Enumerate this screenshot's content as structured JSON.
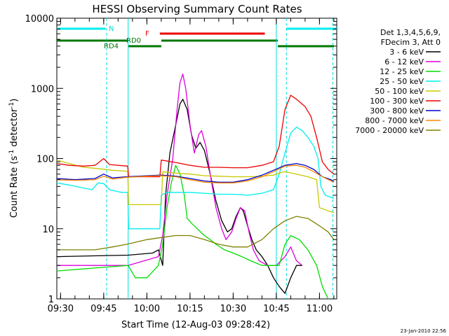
{
  "chart_data": {
    "type": "line",
    "title": "HESSI Observing Summary Count Rates",
    "xlabel": "Start Time (12-Aug-03 09:28:42)",
    "ylabel_main": "Count Rate (s",
    "ylabel_sup1": "-1",
    "ylabel_mid": " detector",
    "ylabel_sup2": "-1",
    "ylabel_end": ")",
    "yscale": "log",
    "xlim": [
      "09:28:42",
      "11:06:00"
    ],
    "ylim": [
      1,
      10000
    ],
    "x_ticks": [
      "09:30",
      "09:45",
      "10:00",
      "10:15",
      "10:30",
      "10:45",
      "11:00"
    ],
    "y_ticks": [
      "1",
      "10",
      "100",
      "1000",
      "10000"
    ],
    "legend_header": [
      "Det 1,3,4,5,6,9,",
      "FDecim 3, Att 0"
    ],
    "legend_position": "right",
    "footer_timestamp": "23-Jan-2010 22:56",
    "flag_labels": {
      "night": "N",
      "flare": "F",
      "rd4": "RD4",
      "rd0": "RD0"
    },
    "flags": {
      "night": [
        [
          "09:28:42",
          "09:45:40"
        ],
        [
          "10:48:30",
          "11:06:00"
        ]
      ],
      "flare": [
        [
          "10:04:30",
          "10:41:00"
        ]
      ],
      "rd4": [
        [
          "09:28:42",
          "09:53:30"
        ],
        [
          "10:05:00",
          "10:45:30"
        ]
      ],
      "rd4_low": [
        [
          "09:53:30",
          "10:05:00"
        ],
        [
          "10:45:30",
          "11:05:00"
        ]
      ]
    },
    "vlines_dashed": [
      "09:46:00",
      "10:48:30",
      "11:04:40"
    ],
    "vlines_solid": [
      "09:53:30",
      "10:45:00"
    ],
    "series": [
      {
        "name": "3 - 6 keV",
        "color": "#000000",
        "points": [
          [
            "09:28:42",
            4
          ],
          [
            "09:53:30",
            4.2
          ],
          [
            "10:02:00",
            4.5
          ],
          [
            "10:04:00",
            5
          ],
          [
            "10:05:30",
            3
          ],
          [
            "10:06:30",
            30
          ],
          [
            "10:08:00",
            120
          ],
          [
            "10:10:00",
            300
          ],
          [
            "10:11:30",
            600
          ],
          [
            "10:12:30",
            700
          ],
          [
            "10:14:00",
            500
          ],
          [
            "10:15:30",
            220
          ],
          [
            "10:17:00",
            140
          ],
          [
            "10:18:30",
            170
          ],
          [
            "10:20:00",
            130
          ],
          [
            "10:22:00",
            60
          ],
          [
            "10:24:00",
            25
          ],
          [
            "10:26:00",
            13
          ],
          [
            "10:28:00",
            9
          ],
          [
            "10:29:30",
            10
          ],
          [
            "10:31:00",
            15
          ],
          [
            "10:32:30",
            20
          ],
          [
            "10:33:30",
            18
          ],
          [
            "10:35:00",
            11
          ],
          [
            "10:36:30",
            7
          ],
          [
            "10:38:00",
            5
          ],
          [
            "10:40:00",
            4
          ],
          [
            "10:42:00",
            3
          ],
          [
            "10:44:00",
            2
          ],
          [
            "10:46:00",
            1.5
          ],
          [
            "10:48:00",
            1.2
          ],
          [
            "10:50:00",
            2
          ],
          [
            "10:52:00",
            3
          ],
          [
            "10:54:00",
            3
          ]
        ]
      },
      {
        "name": "6 - 12 keV",
        "color": "#dd00dd",
        "points": [
          [
            "09:28:42",
            3
          ],
          [
            "09:53:30",
            3
          ],
          [
            "10:04:00",
            4
          ],
          [
            "10:05:30",
            8
          ],
          [
            "10:07:00",
            30
          ],
          [
            "10:09:00",
            100
          ],
          [
            "10:10:30",
            500
          ],
          [
            "10:11:30",
            1200
          ],
          [
            "10:12:30",
            1600
          ],
          [
            "10:13:30",
            1000
          ],
          [
            "10:15:00",
            300
          ],
          [
            "10:16:30",
            120
          ],
          [
            "10:18:00",
            220
          ],
          [
            "10:19:00",
            250
          ],
          [
            "10:20:30",
            150
          ],
          [
            "10:22:00",
            60
          ],
          [
            "10:24:00",
            20
          ],
          [
            "10:26:00",
            10
          ],
          [
            "10:27:30",
            7
          ],
          [
            "10:29:30",
            9
          ],
          [
            "10:31:00",
            14
          ],
          [
            "10:32:30",
            20
          ],
          [
            "10:34:00",
            18
          ],
          [
            "10:35:30",
            9
          ],
          [
            "10:37:00",
            5
          ],
          [
            "10:39:00",
            3.5
          ],
          [
            "10:42:00",
            3
          ],
          [
            "10:45:00",
            3
          ],
          [
            "10:48:00",
            4
          ],
          [
            "10:50:00",
            5.5
          ],
          [
            "10:52:00",
            3.5
          ],
          [
            "10:54:00",
            3
          ]
        ]
      },
      {
        "name": "12 - 25 keV",
        "color": "#00dd00",
        "points": [
          [
            "09:28:42",
            2.5
          ],
          [
            "09:53:30",
            3
          ],
          [
            "09:56:00",
            2
          ],
          [
            "10:00:00",
            2
          ],
          [
            "10:04:00",
            3
          ],
          [
            "10:05:30",
            6
          ],
          [
            "10:07:00",
            20
          ],
          [
            "10:08:30",
            45
          ],
          [
            "10:10:00",
            80
          ],
          [
            "10:11:30",
            60
          ],
          [
            "10:13:00",
            30
          ],
          [
            "10:14:00",
            14
          ],
          [
            "10:15:30",
            12
          ],
          [
            "10:17:30",
            10
          ],
          [
            "10:20:00",
            8
          ],
          [
            "10:22:00",
            7
          ],
          [
            "10:24:00",
            6
          ],
          [
            "10:27:00",
            5
          ],
          [
            "10:30:00",
            4.5
          ],
          [
            "10:33:00",
            4
          ],
          [
            "10:36:00",
            3.5
          ],
          [
            "10:40:00",
            3
          ],
          [
            "10:44:00",
            3
          ],
          [
            "10:46:00",
            3
          ],
          [
            "10:48:00",
            6
          ],
          [
            "10:50:00",
            8
          ],
          [
            "10:53:00",
            7
          ],
          [
            "10:56:00",
            5
          ],
          [
            "10:59:00",
            3
          ],
          [
            "11:01:00",
            1.5
          ],
          [
            "11:03:00",
            1
          ]
        ]
      },
      {
        "name": "25 - 50 keV",
        "color": "#00eeee",
        "points": [
          [
            "09:28:42",
            45
          ],
          [
            "09:33:00",
            42
          ],
          [
            "09:38:00",
            38
          ],
          [
            "09:41:00",
            36
          ],
          [
            "09:43:00",
            45
          ],
          [
            "09:45:00",
            44
          ],
          [
            "09:47:00",
            36
          ],
          [
            "09:51:00",
            33
          ],
          [
            "09:53:20",
            33
          ],
          [
            "09:53:40",
            10
          ],
          [
            "10:00:00",
            10
          ],
          [
            "10:04:30",
            10
          ],
          [
            "10:05:00",
            30
          ],
          [
            "10:07:00",
            33
          ],
          [
            "10:10:00",
            33
          ],
          [
            "10:15:00",
            33
          ],
          [
            "10:20:00",
            32
          ],
          [
            "10:25:00",
            31
          ],
          [
            "10:30:00",
            31
          ],
          [
            "10:35:00",
            30
          ],
          [
            "10:40:00",
            32
          ],
          [
            "10:44:00",
            36
          ],
          [
            "10:46:00",
            60
          ],
          [
            "10:48:00",
            120
          ],
          [
            "10:50:00",
            230
          ],
          [
            "10:52:00",
            280
          ],
          [
            "10:54:00",
            250
          ],
          [
            "10:56:00",
            200
          ],
          [
            "10:58:00",
            150
          ],
          [
            "10:59:30",
            100
          ],
          [
            "11:00:30",
            40
          ],
          [
            "11:02:00",
            30
          ],
          [
            "11:04:00",
            28
          ],
          [
            "11:05:00",
            27
          ]
        ]
      },
      {
        "name": "50 - 100 keV",
        "color": "#c8c800",
        "points": [
          [
            "09:28:42",
            95
          ],
          [
            "09:33:00",
            85
          ],
          [
            "09:38:00",
            75
          ],
          [
            "09:43:00",
            72
          ],
          [
            "09:48:00",
            68
          ],
          [
            "09:53:20",
            66
          ],
          [
            "09:53:40",
            22
          ],
          [
            "10:05:00",
            22
          ],
          [
            "10:05:30",
            65
          ],
          [
            "10:10:00",
            62
          ],
          [
            "10:15:00",
            60
          ],
          [
            "10:20:00",
            57
          ],
          [
            "10:25:00",
            56
          ],
          [
            "10:30:00",
            55
          ],
          [
            "10:35:00",
            55
          ],
          [
            "10:40:00",
            56
          ],
          [
            "10:44:00",
            58
          ],
          [
            "10:46:00",
            62
          ],
          [
            "10:48:00",
            65
          ],
          [
            "10:52:00",
            60
          ],
          [
            "10:56:00",
            55
          ],
          [
            "10:59:00",
            50
          ],
          [
            "11:00:00",
            20
          ],
          [
            "11:03:00",
            18
          ],
          [
            "11:05:00",
            17
          ]
        ]
      },
      {
        "name": "100 - 300 keV",
        "color": "#ee0000",
        "points": [
          [
            "09:28:42",
            85
          ],
          [
            "09:33:00",
            80
          ],
          [
            "09:38:00",
            78
          ],
          [
            "09:42:00",
            80
          ],
          [
            "09:45:00",
            100
          ],
          [
            "09:47:00",
            82
          ],
          [
            "09:53:20",
            78
          ],
          [
            "09:53:40",
            55
          ],
          [
            "10:04:30",
            55
          ],
          [
            "10:05:00",
            95
          ],
          [
            "10:10:00",
            88
          ],
          [
            "10:15:00",
            80
          ],
          [
            "10:20:00",
            75
          ],
          [
            "10:25:00",
            75
          ],
          [
            "10:30:00",
            74
          ],
          [
            "10:35:00",
            74
          ],
          [
            "10:40:00",
            80
          ],
          [
            "10:44:00",
            90
          ],
          [
            "10:46:00",
            150
          ],
          [
            "10:48:00",
            500
          ],
          [
            "10:50:00",
            800
          ],
          [
            "10:52:00",
            700
          ],
          [
            "10:55:00",
            550
          ],
          [
            "10:57:00",
            400
          ],
          [
            "10:59:00",
            200
          ],
          [
            "11:01:00",
            90
          ],
          [
            "11:03:00",
            70
          ],
          [
            "11:05:00",
            60
          ]
        ]
      },
      {
        "name": "300 - 800 keV",
        "color": "#0000cc",
        "points": [
          [
            "09:28:42",
            52
          ],
          [
            "09:35:00",
            50
          ],
          [
            "09:42:00",
            52
          ],
          [
            "09:45:00",
            60
          ],
          [
            "09:48:00",
            53
          ],
          [
            "09:53:00",
            55
          ],
          [
            "10:00:00",
            57
          ],
          [
            "10:05:00",
            58
          ],
          [
            "10:10:00",
            56
          ],
          [
            "10:15:00",
            52
          ],
          [
            "10:20:00",
            48
          ],
          [
            "10:25:00",
            46
          ],
          [
            "10:30:00",
            46
          ],
          [
            "10:35:00",
            50
          ],
          [
            "10:40:00",
            58
          ],
          [
            "10:44:00",
            68
          ],
          [
            "10:48:00",
            80
          ],
          [
            "10:52:00",
            85
          ],
          [
            "10:55:00",
            80
          ],
          [
            "10:58:00",
            70
          ],
          [
            "11:01:00",
            55
          ],
          [
            "11:04:00",
            50
          ],
          [
            "11:05:00",
            47
          ]
        ]
      },
      {
        "name": "800 - 7000 keV",
        "color": "#ff8800",
        "points": [
          [
            "09:28:42",
            50
          ],
          [
            "09:35:00",
            49
          ],
          [
            "09:42:00",
            50
          ],
          [
            "09:45:00",
            56
          ],
          [
            "09:48:00",
            51
          ],
          [
            "09:53:00",
            54
          ],
          [
            "10:00:00",
            56
          ],
          [
            "10:05:00",
            57
          ],
          [
            "10:10:00",
            55
          ],
          [
            "10:15:00",
            50
          ],
          [
            "10:20:00",
            46
          ],
          [
            "10:25:00",
            45
          ],
          [
            "10:30:00",
            45
          ],
          [
            "10:35:00",
            48
          ],
          [
            "10:40:00",
            55
          ],
          [
            "10:44:00",
            65
          ],
          [
            "10:48:00",
            78
          ],
          [
            "10:52:00",
            80
          ],
          [
            "10:55:00",
            75
          ],
          [
            "10:58:00",
            65
          ],
          [
            "11:01:00",
            55
          ],
          [
            "11:04:00",
            48
          ],
          [
            "11:05:00",
            46
          ]
        ]
      },
      {
        "name": "7000 - 20000 keV",
        "color": "#808000",
        "points": [
          [
            "09:28:42",
            5
          ],
          [
            "09:35:00",
            5
          ],
          [
            "09:42:00",
            5
          ],
          [
            "09:48:00",
            5.5
          ],
          [
            "09:53:00",
            6
          ],
          [
            "10:00:00",
            7
          ],
          [
            "10:05:00",
            7.5
          ],
          [
            "10:10:00",
            8
          ],
          [
            "10:15:00",
            8
          ],
          [
            "10:20:00",
            7
          ],
          [
            "10:25:00",
            6
          ],
          [
            "10:30:00",
            5.5
          ],
          [
            "10:35:00",
            5.5
          ],
          [
            "10:40:00",
            7
          ],
          [
            "10:44:00",
            10
          ],
          [
            "10:48:00",
            13
          ],
          [
            "10:52:00",
            15
          ],
          [
            "10:56:00",
            14
          ],
          [
            "11:00:00",
            11
          ],
          [
            "11:03:00",
            9
          ],
          [
            "11:05:00",
            7
          ]
        ]
      }
    ]
  }
}
